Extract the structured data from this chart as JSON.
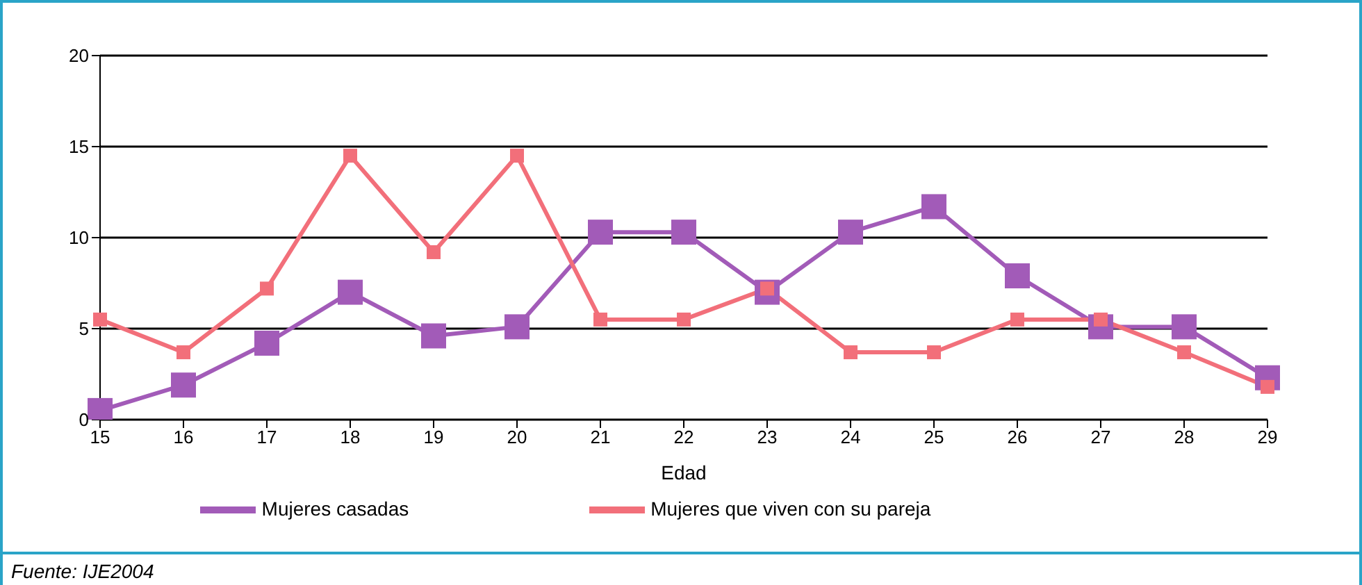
{
  "chart_data": {
    "type": "line",
    "xlabel": "Edad",
    "categories": [
      "15",
      "16",
      "17",
      "18",
      "19",
      "20",
      "21",
      "22",
      "23",
      "24",
      "25",
      "26",
      "27",
      "28",
      "29"
    ],
    "series": [
      {
        "name": "Mujeres casadas",
        "color": "#a25bb8",
        "values": [
          0.5,
          1.9,
          4.2,
          7.0,
          4.6,
          5.1,
          10.3,
          10.3,
          7.0,
          10.3,
          11.7,
          7.9,
          5.1,
          5.1,
          2.3
        ]
      },
      {
        "name": "Mujeres que viven con su pareja",
        "color": "#f26f7a",
        "values": [
          5.5,
          3.7,
          7.2,
          14.5,
          9.2,
          14.5,
          5.5,
          5.5,
          7.2,
          3.7,
          3.7,
          5.5,
          5.5,
          3.7,
          1.8
        ]
      }
    ],
    "ylim": [
      0,
      20
    ],
    "yticks": [
      0,
      5,
      10,
      15,
      20
    ],
    "grid": "y",
    "legend": "bottom",
    "marker": "square",
    "line_style": "solid",
    "annotations": [
      "Fuente: IJE2004"
    ]
  }
}
